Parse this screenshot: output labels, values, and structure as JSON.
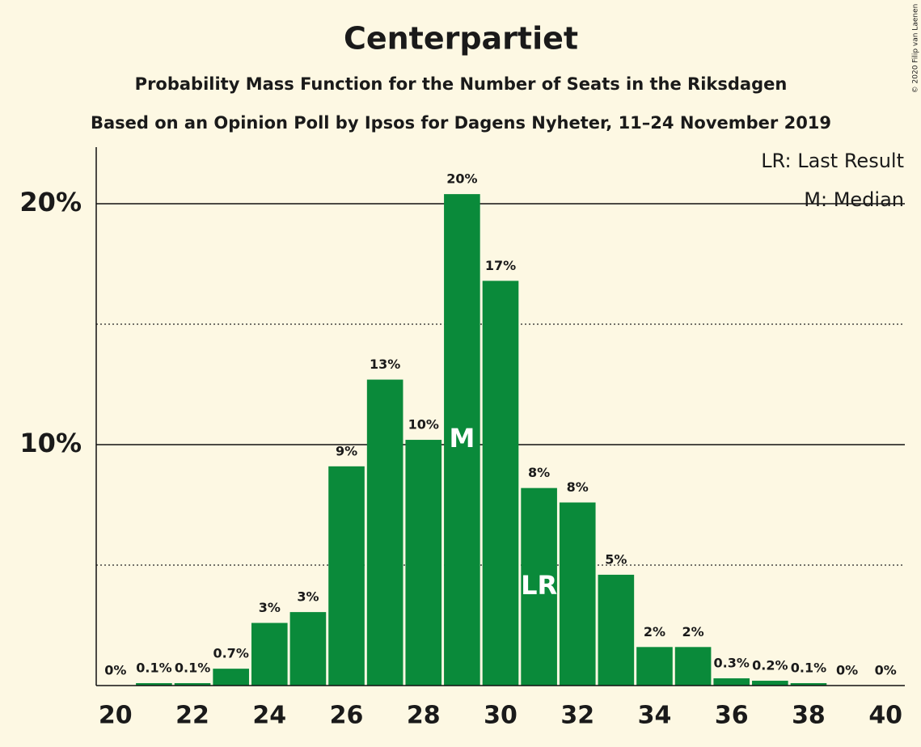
{
  "chart_data": {
    "type": "bar",
    "title": "Centerpartiet",
    "subtitle": "Probability Mass Function for the Number of Seats in the Riksdagen",
    "subtitle2": "Based on an Opinion Poll by Ipsos for Dagens Nyheter, 11–24 November 2019",
    "copyright": "© 2020 Filip van Laenen",
    "x": [
      20,
      21,
      22,
      23,
      24,
      25,
      26,
      27,
      28,
      29,
      30,
      31,
      32,
      33,
      34,
      35,
      36,
      37,
      38,
      39,
      40
    ],
    "values": [
      0,
      0.1,
      0.1,
      0.7,
      2.6,
      3.05,
      9.1,
      12.7,
      10.2,
      20.4,
      16.8,
      8.2,
      7.6,
      4.6,
      1.6,
      1.6,
      0.3,
      0.2,
      0.1,
      0,
      0
    ],
    "value_labels": [
      "0%",
      "0.1%",
      "0.1%",
      "0.7%",
      "3%",
      "3%",
      "9%",
      "13%",
      "10%",
      "20%",
      "17%",
      "8%",
      "8%",
      "5%",
      "2%",
      "2%",
      "0.3%",
      "0.2%",
      "0.1%",
      "0%",
      "0%"
    ],
    "color": "#0a8a3a",
    "xlim": [
      19.5,
      40.5
    ],
    "xticks": [
      20,
      22,
      24,
      26,
      28,
      30,
      32,
      34,
      36,
      38,
      40
    ],
    "ylim": [
      0,
      22.35
    ],
    "yticks": [
      {
        "value": 10,
        "label": "10%"
      },
      {
        "value": 20,
        "label": "20%"
      }
    ],
    "minor_grid": [
      5,
      15
    ],
    "annotations": [
      {
        "x": 29,
        "text": "M"
      },
      {
        "x": 31,
        "text": "LR"
      }
    ],
    "legend": [
      "LR: Last Result",
      "M: Median"
    ]
  }
}
